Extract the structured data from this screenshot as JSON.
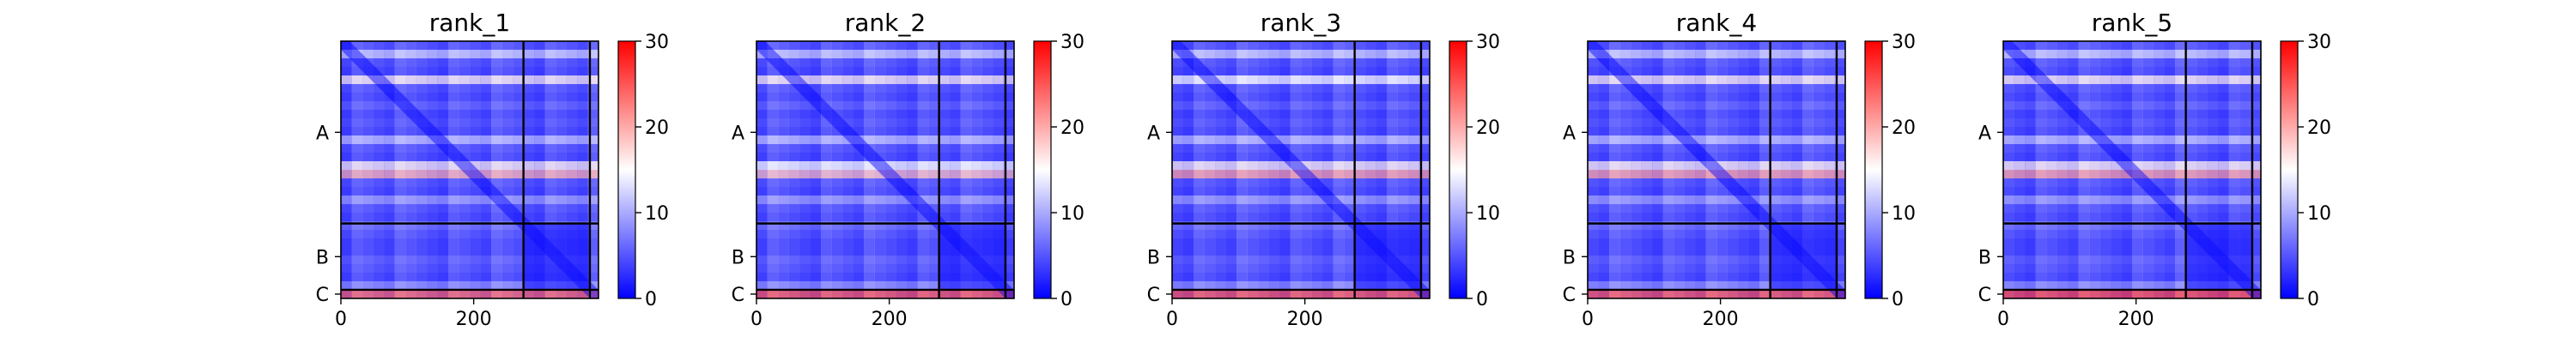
{
  "colors": {
    "low": "#0000ff",
    "mid": "#ffffff",
    "high": "#ff0000",
    "line": "#000000"
  },
  "chart_data": [
    {
      "type": "heatmap",
      "title": "rank_1",
      "xlabel": "",
      "ylabel": "",
      "x_range": [
        0,
        388
      ],
      "y_range": [
        0,
        388
      ],
      "x_ticks": [
        0,
        200
      ],
      "chain_labels": [
        "A",
        "B",
        "C"
      ],
      "chain_bounds": [
        0,
        275,
        375,
        388
      ],
      "colorbar": {
        "min": 0,
        "max": 30,
        "ticks": [
          0,
          10,
          20,
          30
        ],
        "colormap": "bwr"
      },
      "row_values": [
        4,
        12,
        4,
        3,
        16,
        4,
        3,
        5,
        3,
        4,
        3,
        11,
        4,
        3,
        16,
        20,
        4,
        3,
        9,
        4,
        3,
        6,
        4,
        3,
        3,
        5,
        4,
        3,
        8,
        25
      ]
    },
    {
      "type": "heatmap",
      "title": "rank_2",
      "xlabel": "",
      "ylabel": "",
      "x_range": [
        0,
        388
      ],
      "y_range": [
        0,
        388
      ],
      "x_ticks": [
        0,
        200
      ],
      "chain_labels": [
        "A",
        "B",
        "C"
      ],
      "chain_bounds": [
        0,
        275,
        375,
        388
      ],
      "colorbar": {
        "min": 0,
        "max": 30,
        "ticks": [
          0,
          10,
          20,
          30
        ],
        "colormap": "bwr"
      },
      "row_values": [
        4,
        12,
        4,
        3,
        16,
        4,
        3,
        5,
        3,
        4,
        3,
        11,
        4,
        3,
        15,
        19,
        4,
        3,
        9,
        4,
        3,
        6,
        4,
        3,
        3,
        5,
        4,
        3,
        8,
        26
      ]
    },
    {
      "type": "heatmap",
      "title": "rank_3",
      "xlabel": "",
      "ylabel": "",
      "x_range": [
        0,
        388
      ],
      "y_range": [
        0,
        388
      ],
      "x_ticks": [
        0,
        200
      ],
      "chain_labels": [
        "A",
        "B",
        "C"
      ],
      "chain_bounds": [
        0,
        275,
        375,
        388
      ],
      "colorbar": {
        "min": 0,
        "max": 30,
        "ticks": [
          0,
          10,
          20,
          30
        ],
        "colormap": "bwr"
      },
      "row_values": [
        4,
        12,
        4,
        3,
        15,
        4,
        3,
        5,
        3,
        4,
        3,
        11,
        4,
        3,
        16,
        21,
        4,
        3,
        9,
        4,
        3,
        6,
        4,
        3,
        3,
        5,
        4,
        3,
        8,
        26
      ]
    },
    {
      "type": "heatmap",
      "title": "rank_4",
      "xlabel": "",
      "ylabel": "",
      "x_range": [
        0,
        388
      ],
      "y_range": [
        0,
        388
      ],
      "x_ticks": [
        0,
        200
      ],
      "chain_labels": [
        "A",
        "B",
        "C"
      ],
      "chain_bounds": [
        0,
        275,
        375,
        388
      ],
      "colorbar": {
        "min": 0,
        "max": 30,
        "ticks": [
          0,
          10,
          20,
          30
        ],
        "colormap": "bwr"
      },
      "row_values": [
        4,
        12,
        4,
        3,
        16,
        4,
        3,
        5,
        3,
        4,
        3,
        11,
        4,
        3,
        16,
        21,
        4,
        3,
        9,
        4,
        3,
        6,
        4,
        3,
        3,
        5,
        4,
        3,
        8,
        26
      ]
    },
    {
      "type": "heatmap",
      "title": "rank_5",
      "xlabel": "",
      "ylabel": "",
      "x_range": [
        0,
        388
      ],
      "y_range": [
        0,
        388
      ],
      "x_ticks": [
        0,
        200
      ],
      "chain_labels": [
        "A",
        "B",
        "C"
      ],
      "chain_bounds": [
        0,
        275,
        375,
        388
      ],
      "colorbar": {
        "min": 0,
        "max": 30,
        "ticks": [
          0,
          10,
          20,
          30
        ],
        "colormap": "bwr"
      },
      "row_values": [
        4,
        12,
        4,
        3,
        16,
        4,
        3,
        5,
        3,
        4,
        3,
        11,
        4,
        3,
        16,
        21,
        4,
        3,
        9,
        4,
        3,
        6,
        4,
        3,
        3,
        5,
        4,
        3,
        8,
        27
      ]
    }
  ]
}
